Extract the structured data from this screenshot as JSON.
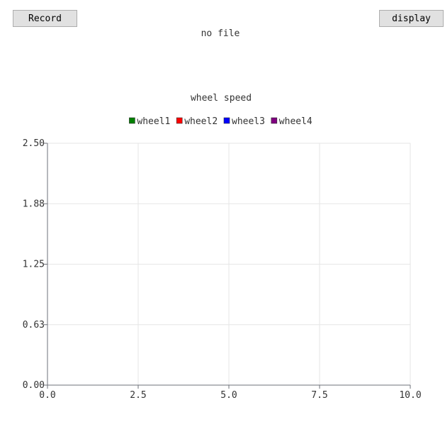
{
  "toolbar": {
    "record_label": "Record",
    "display_label": "display"
  },
  "status": {
    "file": "no file"
  },
  "chart_data": {
    "type": "line",
    "title": "wheel speed",
    "xlabel": "",
    "ylabel": "",
    "xlim": [
      0,
      10
    ],
    "ylim": [
      0,
      2.5
    ],
    "x_ticks": [
      0,
      2.5,
      5,
      7.5,
      10
    ],
    "x_tick_labels": [
      "0.0",
      "2.5",
      "5.0",
      "7.5",
      "10.0"
    ],
    "y_ticks": [
      0,
      0.625,
      1.25,
      1.875,
      2.5
    ],
    "y_tick_labels": [
      "0.00",
      "0.63",
      "1.25",
      "1.88",
      "2.50"
    ],
    "grid": true,
    "legend_position": "top",
    "series": [
      {
        "name": "wheel1",
        "color": "#008000",
        "x": [],
        "y": []
      },
      {
        "name": "wheel2",
        "color": "#ff0000",
        "x": [],
        "y": []
      },
      {
        "name": "wheel3",
        "color": "#0000ff",
        "x": [],
        "y": []
      },
      {
        "name": "wheel4",
        "color": "#800080",
        "x": [],
        "y": []
      }
    ]
  }
}
